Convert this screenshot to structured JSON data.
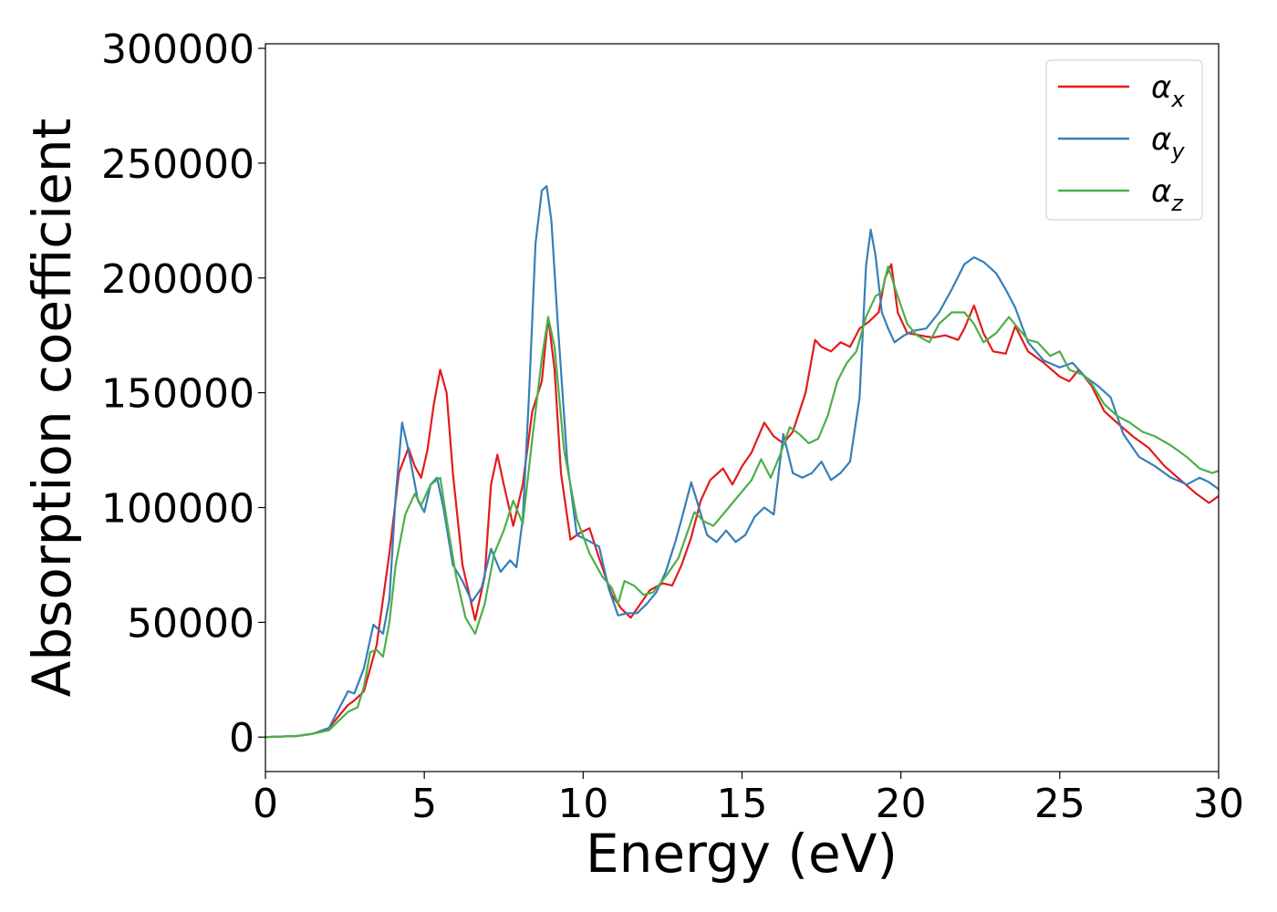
{
  "chart_data": {
    "type": "line",
    "xlabel": "Energy (eV)",
    "ylabel": "Absorption coefficient",
    "xlim": [
      0,
      30
    ],
    "ylim": [
      -15000,
      302000
    ],
    "xticks": [
      0,
      5,
      10,
      15,
      20,
      25,
      30
    ],
    "yticks": [
      0,
      50000,
      100000,
      150000,
      200000,
      250000,
      300000
    ],
    "grid": false,
    "legend_position": "top-right",
    "series": [
      {
        "name": "αx",
        "legend": {
          "base": "α",
          "sub": "x"
        },
        "color": "#e41a1c",
        "x": [
          0,
          1,
          1.5,
          2,
          2.3,
          2.6,
          2.8,
          3.1,
          3.5,
          3.9,
          4.2,
          4.5,
          4.7,
          4.9,
          5.1,
          5.3,
          5.5,
          5.7,
          5.9,
          6.2,
          6.6,
          6.9,
          7.1,
          7.3,
          7.5,
          7.8,
          8.1,
          8.4,
          8.7,
          8.9,
          9.1,
          9.3,
          9.6,
          9.9,
          10.2,
          10.5,
          10.9,
          11.2,
          11.5,
          11.8,
          12.1,
          12.5,
          12.8,
          13.1,
          13.4,
          13.7,
          14.0,
          14.4,
          14.7,
          15.0,
          15.3,
          15.7,
          16.0,
          16.3,
          16.6,
          17.0,
          17.3,
          17.5,
          17.8,
          18.1,
          18.4,
          18.7,
          19.0,
          19.3,
          19.5,
          19.7,
          19.9,
          20.2,
          20.6,
          21.0,
          21.4,
          21.8,
          22.0,
          22.3,
          22.6,
          22.9,
          23.3,
          23.6,
          24.0,
          24.5,
          25.0,
          25.3,
          25.6,
          26.0,
          26.4,
          26.8,
          27.3,
          27.8,
          28.3,
          28.8,
          29.3,
          29.7,
          30.0
        ],
        "y": [
          0,
          500,
          1500,
          4000,
          9000,
          14000,
          16000,
          20000,
          40000,
          80000,
          115000,
          126000,
          118000,
          113000,
          125000,
          145000,
          160000,
          150000,
          115000,
          75000,
          51000,
          70000,
          110000,
          123000,
          110000,
          92000,
          110000,
          142000,
          155000,
          183000,
          160000,
          115000,
          86000,
          89000,
          91000,
          78000,
          62000,
          56000,
          52000,
          58000,
          64000,
          67000,
          66000,
          75000,
          87000,
          103000,
          112000,
          117000,
          110000,
          118000,
          124000,
          137000,
          131000,
          128000,
          133000,
          150000,
          173000,
          170000,
          168000,
          172000,
          170000,
          178000,
          181000,
          185000,
          200000,
          206000,
          185000,
          176000,
          175000,
          174000,
          175000,
          173000,
          178000,
          188000,
          176000,
          168000,
          167000,
          179000,
          168000,
          163000,
          157000,
          155000,
          160000,
          153000,
          142000,
          137000,
          131000,
          126000,
          118000,
          112000,
          106000,
          102000,
          105000
        ]
      },
      {
        "name": "αy",
        "legend": {
          "base": "α",
          "sub": "y"
        },
        "color": "#377eb8",
        "x": [
          0,
          1,
          1.5,
          2,
          2.3,
          2.6,
          2.8,
          3.1,
          3.4,
          3.7,
          3.9,
          4.1,
          4.3,
          4.5,
          4.8,
          5.0,
          5.2,
          5.4,
          5.6,
          5.9,
          6.2,
          6.5,
          6.8,
          7.1,
          7.4,
          7.7,
          7.9,
          8.1,
          8.3,
          8.5,
          8.7,
          8.85,
          9.0,
          9.2,
          9.5,
          9.8,
          10.1,
          10.5,
          10.8,
          11.1,
          11.4,
          11.7,
          12.0,
          12.3,
          12.6,
          12.9,
          13.1,
          13.4,
          13.6,
          13.9,
          14.2,
          14.5,
          14.8,
          15.1,
          15.4,
          15.7,
          16.0,
          16.3,
          16.6,
          16.9,
          17.2,
          17.5,
          17.8,
          18.1,
          18.4,
          18.7,
          18.9,
          19.05,
          19.2,
          19.4,
          19.6,
          19.8,
          20.1,
          20.4,
          20.8,
          21.2,
          21.6,
          22.0,
          22.3,
          22.6,
          23.0,
          23.3,
          23.6,
          24.0,
          24.5,
          25.0,
          25.4,
          25.8,
          26.2,
          26.6,
          27.0,
          27.5,
          28.0,
          28.5,
          29.0,
          29.4,
          29.7,
          30.0
        ],
        "y": [
          0,
          500,
          1500,
          4000,
          12000,
          20000,
          19000,
          30000,
          49000,
          45000,
          60000,
          105000,
          137000,
          125000,
          103000,
          98000,
          110000,
          113000,
          100000,
          75000,
          68000,
          59000,
          65000,
          82000,
          72000,
          77000,
          74000,
          95000,
          150000,
          215000,
          238000,
          240000,
          225000,
          180000,
          120000,
          88000,
          86000,
          83000,
          65000,
          53000,
          54000,
          54000,
          58000,
          63000,
          72000,
          85000,
          95000,
          111000,
          102000,
          88000,
          85000,
          90000,
          85000,
          88000,
          96000,
          100000,
          97000,
          132000,
          115000,
          113000,
          115000,
          120000,
          112000,
          115000,
          120000,
          148000,
          205000,
          221000,
          210000,
          185000,
          178000,
          172000,
          175000,
          177000,
          178000,
          185000,
          195000,
          206000,
          209000,
          207000,
          202000,
          195000,
          187000,
          172000,
          164000,
          161000,
          163000,
          157000,
          153000,
          148000,
          132000,
          122000,
          118000,
          113000,
          110000,
          113000,
          111000,
          108000
        ]
      },
      {
        "name": "αz",
        "legend": {
          "base": "α",
          "sub": "z"
        },
        "color": "#4daf4a",
        "x": [
          0,
          1,
          1.5,
          2,
          2.3,
          2.6,
          2.9,
          3.1,
          3.3,
          3.5,
          3.7,
          3.9,
          4.1,
          4.4,
          4.7,
          4.9,
          5.2,
          5.5,
          5.7,
          6.0,
          6.3,
          6.6,
          6.9,
          7.2,
          7.5,
          7.8,
          8.1,
          8.4,
          8.7,
          8.9,
          9.1,
          9.4,
          9.8,
          10.2,
          10.6,
          10.9,
          11.1,
          11.3,
          11.6,
          11.9,
          12.2,
          12.6,
          13.0,
          13.3,
          13.5,
          13.8,
          14.1,
          14.4,
          14.7,
          15.0,
          15.3,
          15.6,
          15.9,
          16.2,
          16.5,
          16.8,
          17.1,
          17.4,
          17.7,
          18.0,
          18.3,
          18.6,
          18.9,
          19.2,
          19.4,
          19.6,
          19.9,
          20.2,
          20.5,
          20.9,
          21.2,
          21.6,
          22.0,
          22.3,
          22.6,
          23.0,
          23.4,
          23.7,
          24.0,
          24.3,
          24.7,
          25.0,
          25.3,
          25.7,
          26.0,
          26.4,
          26.8,
          27.2,
          27.6,
          28.0,
          28.5,
          29.0,
          29.4,
          29.8,
          30.0
        ],
        "y": [
          0,
          500,
          1500,
          3000,
          7000,
          11000,
          13000,
          22000,
          37000,
          38000,
          35000,
          50000,
          75000,
          97000,
          106000,
          101000,
          110000,
          113000,
          95000,
          70000,
          52000,
          45000,
          58000,
          80000,
          90000,
          103000,
          93000,
          130000,
          165000,
          183000,
          170000,
          125000,
          95000,
          80000,
          70000,
          65000,
          58000,
          68000,
          66000,
          62000,
          63000,
          70000,
          78000,
          90000,
          98000,
          94000,
          92000,
          97000,
          102000,
          107000,
          112000,
          121000,
          113000,
          123000,
          135000,
          132000,
          128000,
          130000,
          140000,
          155000,
          163000,
          168000,
          183000,
          192000,
          194000,
          205000,
          192000,
          180000,
          175000,
          172000,
          180000,
          185000,
          185000,
          180000,
          172000,
          176000,
          183000,
          178000,
          173000,
          172000,
          166000,
          168000,
          160000,
          158000,
          154000,
          145000,
          140000,
          137000,
          133000,
          131000,
          127000,
          122000,
          117000,
          115000,
          116000
        ]
      }
    ]
  }
}
